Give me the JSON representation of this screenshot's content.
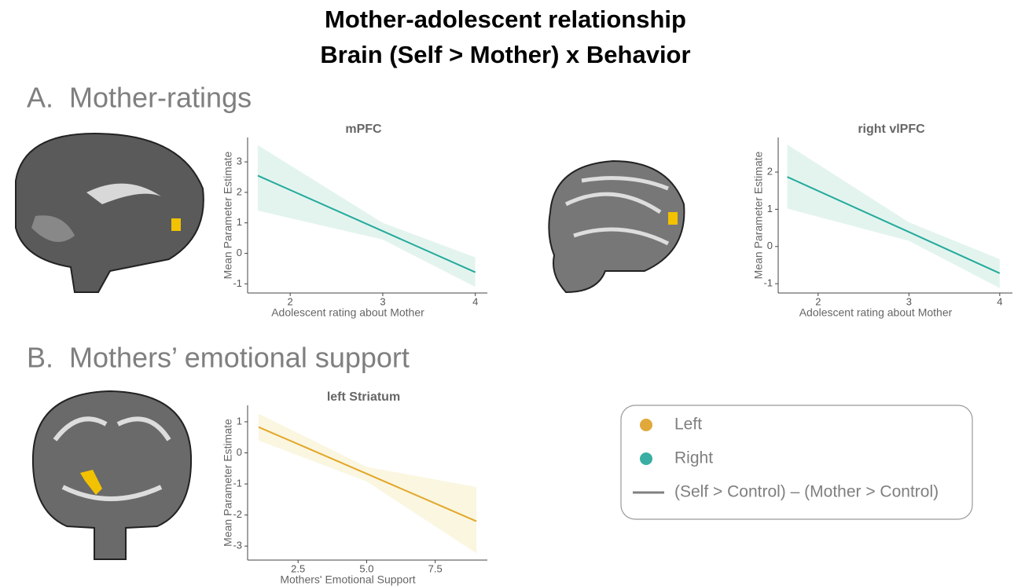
{
  "title": "Mother-adolescent relationship",
  "subtitle": "Brain (Self > Mother) x Behavior",
  "sections": [
    "A.  Mother-ratings",
    "B.  Mothers’ emotional support"
  ],
  "legend": {
    "items": [
      {
        "label": "Left",
        "color": "#e0a93a"
      },
      {
        "label": "Right",
        "color": "#3aaea3"
      },
      {
        "label": "(Self > Control) – (Mother > Control)",
        "color": "#808080"
      }
    ]
  },
  "chart_data": [
    {
      "type": "line",
      "title": "mPFC",
      "x_label": "Adolescent rating about Mother",
      "y_label": "Mean Parameter Estimate",
      "x": [
        1.65,
        3,
        4
      ],
      "series": [
        {
          "color": "#25aa9c",
          "band_color": "#e3f4ee",
          "values": [
            2.55,
            0.73,
            -0.62
          ],
          "lower": [
            1.4,
            0.45,
            -1.1
          ],
          "upper": [
            3.55,
            1.0,
            -0.13
          ]
        }
      ],
      "xlim": [
        1.54,
        4.13
      ],
      "xticks": [
        2,
        3,
        4
      ],
      "ylim": [
        -1.3,
        3.8
      ],
      "yticks": [
        -1,
        0,
        1,
        2,
        3
      ]
    },
    {
      "type": "line",
      "title": "right vlPFC",
      "x_label": "Adolescent rating about Mother",
      "y_label": "Mean Parameter Estimate",
      "x": [
        1.66,
        3,
        4
      ],
      "series": [
        {
          "color": "#25aa9c",
          "band_color": "#e3f4ee",
          "values": [
            1.87,
            0.39,
            -0.72
          ],
          "lower": [
            1.02,
            0.15,
            -1.12
          ],
          "upper": [
            2.74,
            0.65,
            -0.34
          ]
        }
      ],
      "xlim": [
        1.56,
        4.14
      ],
      "xticks": [
        2,
        3,
        4
      ],
      "ylim": [
        -1.25,
        2.93
      ],
      "yticks": [
        -1,
        0,
        1,
        2
      ]
    },
    {
      "type": "line",
      "title": "left Striatum",
      "x_label": "Mothers' Emotional Support",
      "y_label": "Mean Parameter Estimate",
      "x": [
        1.06,
        5,
        9
      ],
      "series": [
        {
          "color": "#e3a72a",
          "band_color": "#faf6e0",
          "values": [
            0.83,
            -0.67,
            -2.2
          ],
          "lower": [
            0.4,
            -0.92,
            -3.23
          ],
          "upper": [
            1.26,
            -0.45,
            -1.1
          ]
        }
      ],
      "xlim": [
        0.66,
        9.4
      ],
      "xticks": [
        2.5,
        {
          "value": 5,
          "label": "5.0"
        },
        7.5
      ],
      "ylim": [
        -3.45,
        1.53
      ],
      "yticks": [
        -3,
        -2,
        -1,
        0,
        1
      ]
    }
  ]
}
